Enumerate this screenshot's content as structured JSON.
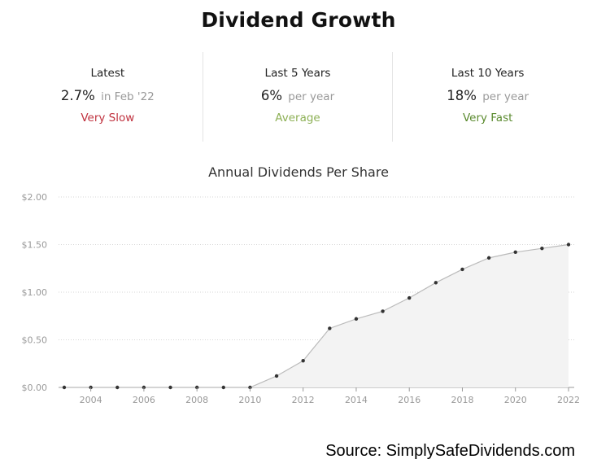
{
  "header": {
    "title": "Dividend Growth"
  },
  "stats": [
    {
      "label": "Latest",
      "value": "2.7%",
      "suffix": "in Feb '22",
      "rating": "Very Slow",
      "rating_color": "#c0323f"
    },
    {
      "label": "Last 5 Years",
      "value": "6%",
      "suffix": "per year",
      "rating": "Average",
      "rating_color": "#8db055"
    },
    {
      "label": "Last 10 Years",
      "value": "18%",
      "suffix": "per year",
      "rating": "Very Fast",
      "rating_color": "#5a8a2e"
    }
  ],
  "chart_data": {
    "type": "area",
    "title": "Annual Dividends Per Share",
    "x": [
      2003,
      2004,
      2005,
      2006,
      2007,
      2008,
      2009,
      2010,
      2011,
      2012,
      2013,
      2014,
      2015,
      2016,
      2017,
      2018,
      2019,
      2020,
      2021,
      2022
    ],
    "values": [
      0,
      0,
      0,
      0,
      0,
      0,
      0,
      0,
      0.12,
      0.28,
      0.62,
      0.72,
      0.8,
      0.94,
      1.1,
      1.24,
      1.36,
      1.42,
      1.46,
      1.5
    ],
    "xticks": [
      "2004",
      "2006",
      "2008",
      "2010",
      "2012",
      "2014",
      "2016",
      "2018",
      "2020",
      "2022"
    ],
    "yticks": [
      "$0.00",
      "$0.50",
      "$1.00",
      "$1.50",
      "$2.00"
    ],
    "ytick_values": [
      0,
      0.5,
      1.0,
      1.5,
      2.0
    ],
    "xlim": [
      2003,
      2022
    ],
    "ylim": [
      0,
      2
    ],
    "grid": true,
    "line_color": "#bbbbbb",
    "fill_color": "#f3f3f3",
    "point_color": "#333333"
  },
  "footer": {
    "source": "Source: SimplySafeDividends.com"
  }
}
